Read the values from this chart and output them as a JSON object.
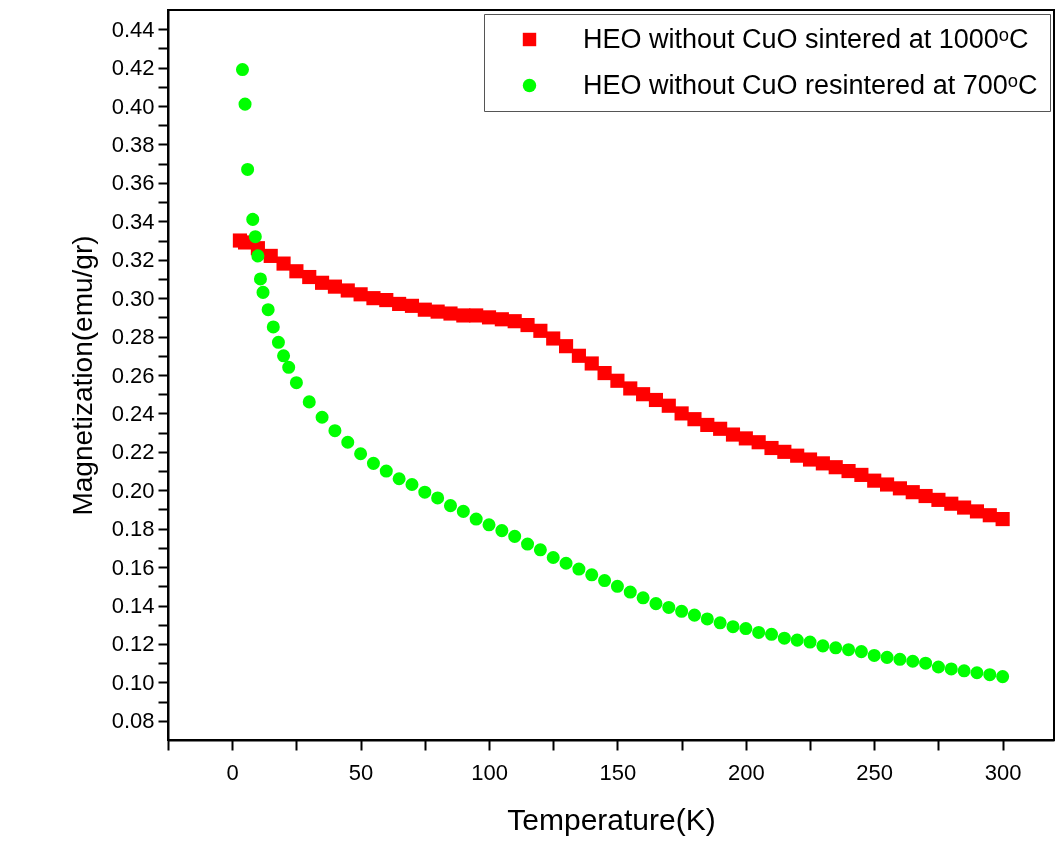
{
  "chart_data": {
    "type": "scatter",
    "xlabel": "Temperature(K)",
    "ylabel": "Magnetization(emu/gr)",
    "xlim": [
      -25,
      320
    ],
    "ylim": [
      0.07,
      0.45
    ],
    "xticks": [
      {
        "value": -25,
        "label": null
      },
      0,
      {
        "value": 25,
        "label": null
      },
      50,
      {
        "value": 75,
        "label": null
      },
      100,
      {
        "value": 125,
        "label": null
      },
      150,
      {
        "value": 175,
        "label": null
      },
      200,
      {
        "value": 225,
        "label": null
      },
      250,
      {
        "value": 275,
        "label": null
      },
      300
    ],
    "yticks": [
      0.08,
      {
        "value": 0.09,
        "label": null
      },
      {
        "value": 0.1,
        "label": "0.10"
      },
      {
        "value": 0.11,
        "label": null
      },
      0.12,
      {
        "value": 0.13,
        "label": null
      },
      0.14,
      {
        "value": 0.15,
        "label": null
      },
      0.16,
      {
        "value": 0.17,
        "label": null
      },
      0.18,
      {
        "value": 0.19,
        "label": null
      },
      {
        "value": 0.2,
        "label": "0.20"
      },
      {
        "value": 0.21,
        "label": null
      },
      0.22,
      {
        "value": 0.23,
        "label": null
      },
      0.24,
      {
        "value": 0.25,
        "label": null
      },
      0.26,
      {
        "value": 0.27,
        "label": null
      },
      0.28,
      {
        "value": 0.29,
        "label": null
      },
      {
        "value": 0.3,
        "label": "0.30"
      },
      {
        "value": 0.31,
        "label": null
      },
      0.32,
      {
        "value": 0.33,
        "label": null
      },
      0.34,
      {
        "value": 0.35,
        "label": null
      },
      0.36,
      {
        "value": 0.37,
        "label": null
      },
      0.38,
      {
        "value": 0.39,
        "label": null
      },
      {
        "value": 0.4,
        "label": "0.40"
      },
      {
        "value": 0.41,
        "label": null
      },
      0.42,
      {
        "value": 0.43,
        "label": null
      },
      0.44
    ],
    "legend": "top right",
    "series": [
      {
        "name": "HEO without CuO sintered at 1000ᵒC",
        "color": "#ff0000",
        "marker": "square",
        "x": [
          3,
          5,
          10,
          15,
          20,
          25,
          30,
          35,
          40,
          45,
          50,
          55,
          60,
          65,
          70,
          75,
          80,
          85,
          90,
          95,
          100,
          105,
          110,
          115,
          120,
          125,
          130,
          135,
          140,
          145,
          150,
          155,
          160,
          165,
          170,
          175,
          180,
          185,
          190,
          195,
          200,
          205,
          210,
          215,
          220,
          225,
          230,
          235,
          240,
          245,
          250,
          255,
          260,
          265,
          270,
          275,
          280,
          285,
          290,
          295,
          300
        ],
        "values": [
          0.33,
          0.329,
          0.326,
          0.322,
          0.318,
          0.314,
          0.311,
          0.308,
          0.306,
          0.304,
          0.302,
          0.3,
          0.299,
          0.297,
          0.296,
          0.294,
          0.293,
          0.292,
          0.291,
          0.291,
          0.29,
          0.289,
          0.288,
          0.286,
          0.283,
          0.279,
          0.275,
          0.27,
          0.266,
          0.261,
          0.257,
          0.253,
          0.25,
          0.247,
          0.244,
          0.24,
          0.237,
          0.234,
          0.232,
          0.229,
          0.227,
          0.225,
          0.222,
          0.22,
          0.218,
          0.216,
          0.214,
          0.212,
          0.21,
          0.208,
          0.205,
          0.203,
          0.201,
          0.199,
          0.197,
          0.195,
          0.193,
          0.191,
          0.189,
          0.187,
          0.185
        ]
      },
      {
        "name": "HEO without CuO resintered at 700ᵒC",
        "color": "#00ff00",
        "marker": "circle",
        "x": [
          4,
          5,
          6,
          8,
          9,
          10,
          11,
          12,
          14,
          16,
          18,
          20,
          22,
          25,
          30,
          35,
          40,
          45,
          50,
          55,
          60,
          65,
          70,
          75,
          80,
          85,
          90,
          95,
          100,
          105,
          110,
          115,
          120,
          125,
          130,
          135,
          140,
          145,
          150,
          155,
          160,
          165,
          170,
          175,
          180,
          185,
          190,
          195,
          200,
          205,
          210,
          215,
          220,
          225,
          230,
          235,
          240,
          245,
          250,
          255,
          260,
          265,
          270,
          275,
          280,
          285,
          290,
          295,
          300
        ],
        "values": [
          0.419,
          0.401,
          0.367,
          0.341,
          0.332,
          0.322,
          0.31,
          0.303,
          0.294,
          0.285,
          0.277,
          0.27,
          0.264,
          0.256,
          0.246,
          0.238,
          0.231,
          0.225,
          0.219,
          0.214,
          0.21,
          0.206,
          0.203,
          0.199,
          0.196,
          0.192,
          0.189,
          0.185,
          0.182,
          0.179,
          0.176,
          0.172,
          0.169,
          0.165,
          0.162,
          0.159,
          0.156,
          0.153,
          0.15,
          0.147,
          0.144,
          0.141,
          0.139,
          0.137,
          0.135,
          0.133,
          0.131,
          0.129,
          0.128,
          0.126,
          0.125,
          0.123,
          0.122,
          0.121,
          0.119,
          0.118,
          0.117,
          0.116,
          0.114,
          0.113,
          0.112,
          0.111,
          0.11,
          0.108,
          0.107,
          0.106,
          0.105,
          0.104,
          0.103
        ]
      }
    ]
  }
}
